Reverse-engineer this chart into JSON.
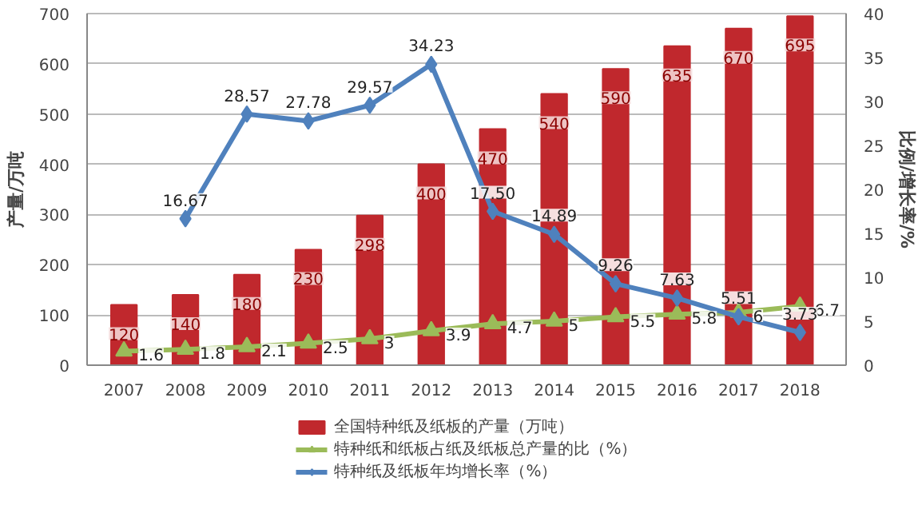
{
  "chart_data": {
    "type": "bar",
    "ylabel": "产量/万吨",
    "y2label": "比例/增长率/%",
    "categories": [
      "2007",
      "2008",
      "2009",
      "2010",
      "2011",
      "2012",
      "2013",
      "2014",
      "2015",
      "2016",
      "2017",
      "2018"
    ],
    "series": [
      {
        "name": "全国特种纸及纸板的产量（万吨）",
        "color": "#c0282d",
        "values": [
          120,
          140,
          180,
          230,
          298,
          400,
          470,
          540,
          590,
          635,
          670,
          695
        ]
      },
      {
        "name": "特种纸和纸板占纸及纸板总产量的比（%）",
        "type": "line",
        "axis": "y2",
        "marker": "triangle",
        "color": "#9bbb59",
        "values": [
          1.6,
          1.8,
          2.1,
          2.5,
          3,
          3.9,
          4.7,
          5,
          5.5,
          5.8,
          6,
          6.7
        ]
      },
      {
        "name": "特种纸及纸板年均增长率（%）",
        "type": "line",
        "axis": "y2",
        "marker": "diamond",
        "color": "#4f81bd",
        "values": [
          null,
          16.67,
          28.57,
          27.78,
          29.57,
          34.23,
          17.5,
          14.89,
          9.26,
          7.63,
          5.51,
          3.73
        ],
        "value_labels": [
          null,
          "16.67",
          "28.57",
          "27.78",
          "29.57",
          "34.23",
          "17.50",
          "14.89",
          "9.26",
          "7.63",
          "5.51",
          "3.73"
        ]
      }
    ],
    "ylim": [
      0,
      700
    ],
    "yticks": [
      0,
      100,
      200,
      300,
      400,
      500,
      600,
      700
    ],
    "y2lim": [
      0,
      40
    ],
    "y2ticks": [
      0,
      5,
      10,
      15,
      20,
      25,
      30,
      35,
      40
    ],
    "grid": "y",
    "legend": "bottom",
    "data_labels": true
  }
}
